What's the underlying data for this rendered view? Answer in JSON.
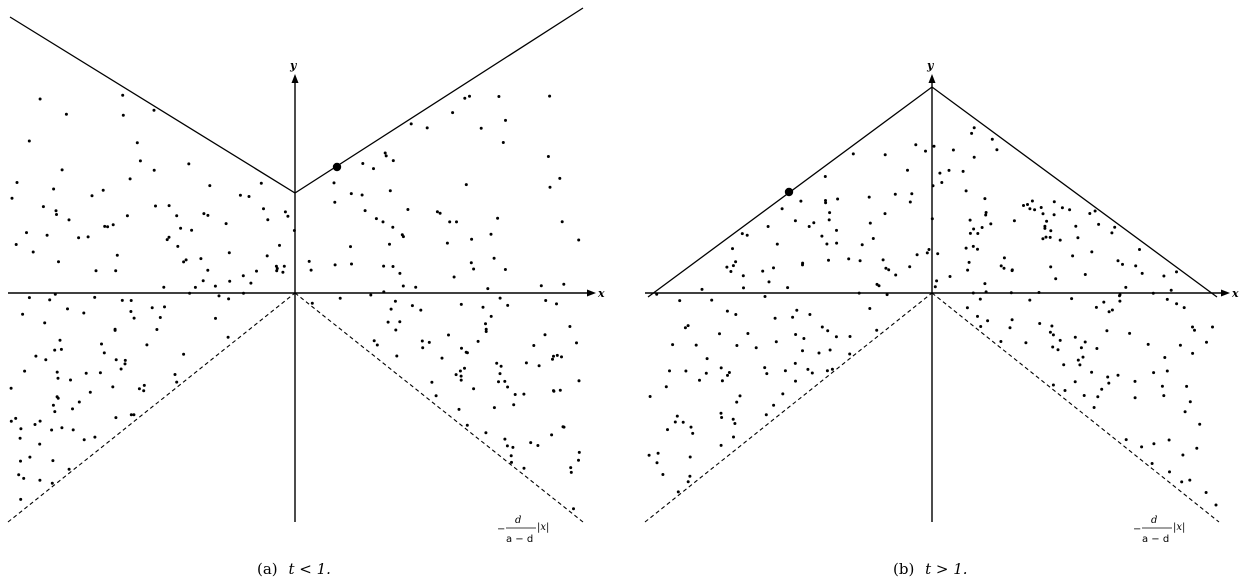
{
  "panels": [
    {
      "id": "a",
      "caption": {
        "prefix": "(a)",
        "math": "t < 1."
      },
      "axis_labels": {
        "x": "x",
        "y": "y"
      },
      "boundary_label": {
        "minus": "−",
        "numerator": "d",
        "denominator": "a − d",
        "abs": "|x|"
      },
      "shape": "V-up",
      "highlighted_point": {
        "side": "right"
      }
    },
    {
      "id": "b",
      "caption": {
        "prefix": "(b)",
        "math": "t > 1."
      },
      "axis_labels": {
        "x": "x",
        "y": "y"
      },
      "boundary_label": {
        "minus": "−",
        "numerator": "d",
        "denominator": "a − d",
        "abs": "|x|"
      },
      "shape": "tent",
      "highlighted_point": {
        "side": "left"
      }
    }
  ]
}
